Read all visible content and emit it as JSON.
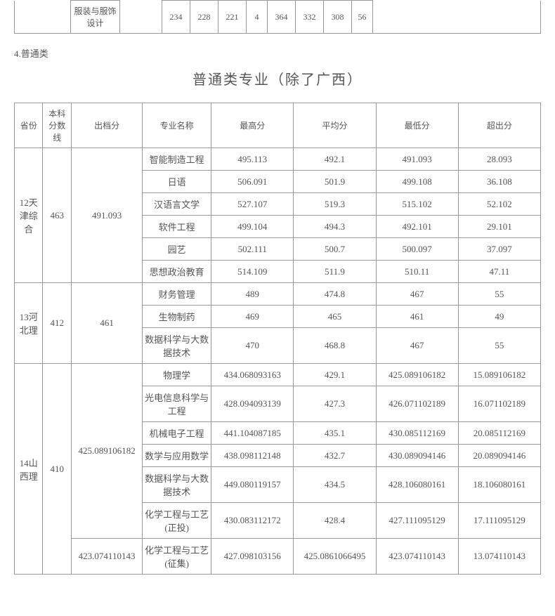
{
  "top_table": {
    "first_col_label": "",
    "major": "服装与服饰设计",
    "cells": [
      "",
      "234",
      "228",
      "221",
      "4",
      "364",
      "332",
      "308",
      "56",
      ""
    ]
  },
  "section_label": "4.普通类",
  "main_title": "普通类专业（除了广西）",
  "headers": {
    "province": "省份",
    "benke": "本科分数线",
    "chudang": "出档分",
    "major": "专业名称",
    "high": "最高分",
    "avg": "平均分",
    "low": "最低分",
    "excess": "超出分"
  },
  "groups": [
    {
      "province": "12天津综合",
      "benke": "463",
      "chudang": "491.093",
      "rows": [
        {
          "major": "智能制造工程",
          "high": "495.113",
          "avg": "492.1",
          "low": "491.093",
          "excess": "28.093"
        },
        {
          "major": "日语",
          "high": "506.091",
          "avg": "501.9",
          "low": "499.108",
          "excess": "36.108"
        },
        {
          "major": "汉语言文学",
          "high": "527.107",
          "avg": "519.3",
          "low": "515.102",
          "excess": "52.102"
        },
        {
          "major": "软件工程",
          "high": "499.104",
          "avg": "494.3",
          "low": "492.101",
          "excess": "29.101"
        },
        {
          "major": "园艺",
          "high": "502.111",
          "avg": "500.7",
          "low": "500.097",
          "excess": "37.097"
        },
        {
          "major": "思想政治教育",
          "high": "514.109",
          "avg": "511.9",
          "low": "510.11",
          "excess": "47.11"
        }
      ]
    },
    {
      "province": "13河北理",
      "benke": "412",
      "chudang": "461",
      "rows": [
        {
          "major": "财务管理",
          "high": "489",
          "avg": "474.8",
          "low": "467",
          "excess": "55"
        },
        {
          "major": "生物制药",
          "high": "469",
          "avg": "465",
          "low": "461",
          "excess": "49"
        },
        {
          "major": "数据科学与大数据技术",
          "high": "470",
          "avg": "468.8",
          "low": "467",
          "excess": "55"
        }
      ]
    },
    {
      "province": "14山西理",
      "benke": "410",
      "chudang_groups": [
        {
          "chudang": "425.089106182",
          "rows": [
            {
              "major": "物理学",
              "high": "434.068093163",
              "avg": "429.1",
              "low": "425.089106182",
              "excess": "15.089106182"
            },
            {
              "major": "光电信息科学与工程",
              "high": "428.094093139",
              "avg": "427.3",
              "low": "426.071102189",
              "excess": "16.071102189"
            },
            {
              "major": "机械电子工程",
              "high": "441.104087185",
              "avg": "435.1",
              "low": "430.085112169",
              "excess": "20.085112169"
            },
            {
              "major": "数学与应用数学",
              "high": "438.098112148",
              "avg": "432.7",
              "low": "430.089094146",
              "excess": "20.089094146"
            },
            {
              "major": "数据科学与大数据技术",
              "high": "449.080119157",
              "avg": "434.5",
              "low": "428.106080161",
              "excess": "18.106080161"
            },
            {
              "major": "化学工程与工艺(正投)",
              "high": "430.083112172",
              "avg": "428.4",
              "low": "427.111095129",
              "excess": "17.111095129"
            }
          ]
        },
        {
          "chudang": "423.074110143",
          "rows": [
            {
              "major": "化学工程与工艺(征集)",
              "high": "427.098103156",
              "avg": "425.0861066495",
              "low": "423.074110143",
              "excess": "13.074110143"
            }
          ]
        }
      ]
    }
  ]
}
